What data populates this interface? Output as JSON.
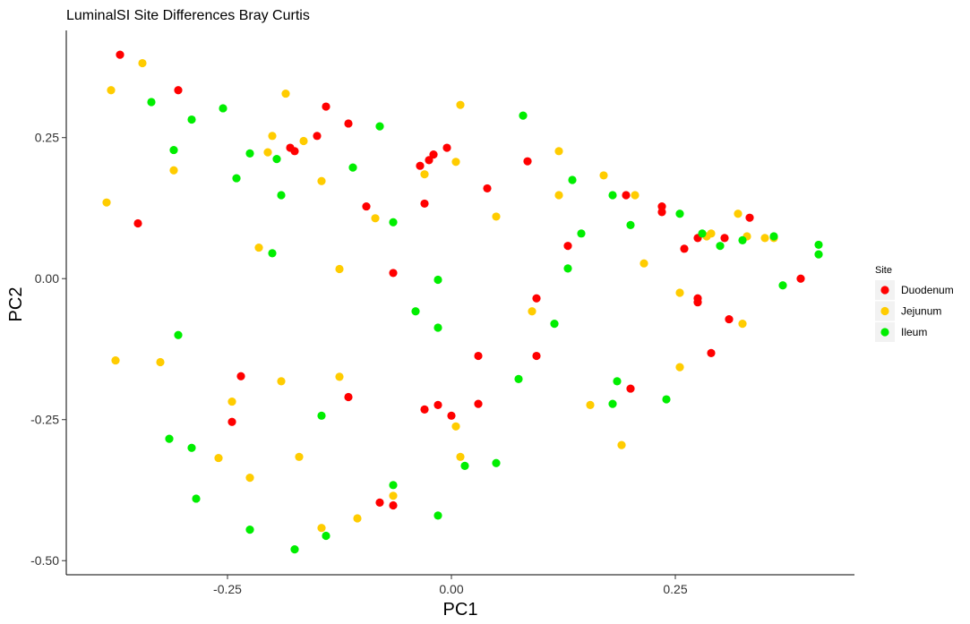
{
  "chart_data": {
    "type": "scatter",
    "title": "LuminalSI Site Differences Bray Curtis",
    "xlabel": "PC1",
    "ylabel": "PC2",
    "xlim": [
      -0.43,
      0.45
    ],
    "ylim": [
      -0.525,
      0.44
    ],
    "xticks": [
      -0.25,
      0.0,
      0.25
    ],
    "xtick_labels": [
      "-0.25",
      "0.00",
      "0.25"
    ],
    "yticks": [
      -0.5,
      -0.25,
      0.0,
      0.25
    ],
    "ytick_labels": [
      "-0.50",
      "-0.25",
      "0.00",
      "0.25"
    ],
    "grid": false,
    "legend": {
      "title": "Site",
      "position": "right"
    },
    "series": [
      {
        "name": "Duodenum",
        "color": "#ff0000",
        "points": [
          [
            -0.37,
            0.397
          ],
          [
            -0.305,
            0.334
          ],
          [
            -0.35,
            0.098
          ],
          [
            -0.14,
            0.305
          ],
          [
            -0.115,
            0.275
          ],
          [
            -0.15,
            0.253
          ],
          [
            -0.18,
            0.232
          ],
          [
            -0.175,
            0.226
          ],
          [
            -0.095,
            0.128
          ],
          [
            -0.035,
            0.2
          ],
          [
            -0.025,
            0.21
          ],
          [
            -0.02,
            0.22
          ],
          [
            -0.005,
            0.232
          ],
          [
            -0.03,
            0.133
          ],
          [
            0.04,
            0.16
          ],
          [
            0.085,
            0.208
          ],
          [
            0.13,
            0.058
          ],
          [
            0.195,
            0.148
          ],
          [
            0.235,
            0.128
          ],
          [
            0.235,
            0.118
          ],
          [
            0.26,
            0.053
          ],
          [
            0.275,
            0.072
          ],
          [
            0.305,
            0.072
          ],
          [
            0.333,
            0.108
          ],
          [
            0.39,
            0.0
          ],
          [
            -0.065,
            0.01
          ],
          [
            0.095,
            -0.035
          ],
          [
            0.275,
            -0.035
          ],
          [
            0.275,
            -0.042
          ],
          [
            0.31,
            -0.072
          ],
          [
            -0.235,
            -0.173
          ],
          [
            -0.245,
            -0.254
          ],
          [
            -0.115,
            -0.21
          ],
          [
            -0.03,
            -0.232
          ],
          [
            -0.015,
            -0.224
          ],
          [
            0.0,
            -0.243
          ],
          [
            0.03,
            -0.137
          ],
          [
            0.03,
            -0.222
          ],
          [
            0.095,
            -0.137
          ],
          [
            0.2,
            -0.195
          ],
          [
            0.29,
            -0.132
          ],
          [
            -0.08,
            -0.397
          ],
          [
            -0.065,
            -0.402
          ]
        ]
      },
      {
        "name": "Jejunum",
        "color": "#ffcc00",
        "points": [
          [
            -0.38,
            0.334
          ],
          [
            -0.345,
            0.382
          ],
          [
            -0.31,
            0.192
          ],
          [
            -0.385,
            0.135
          ],
          [
            -0.185,
            0.328
          ],
          [
            -0.2,
            0.253
          ],
          [
            -0.205,
            0.224
          ],
          [
            -0.165,
            0.244
          ],
          [
            -0.145,
            0.173
          ],
          [
            -0.085,
            0.107
          ],
          [
            -0.215,
            0.055
          ],
          [
            -0.125,
            0.017
          ],
          [
            -0.03,
            0.185
          ],
          [
            0.005,
            0.207
          ],
          [
            0.01,
            0.308
          ],
          [
            0.05,
            0.11
          ],
          [
            0.12,
            0.226
          ],
          [
            0.12,
            0.148
          ],
          [
            0.17,
            0.183
          ],
          [
            0.205,
            0.148
          ],
          [
            0.215,
            0.027
          ],
          [
            0.255,
            -0.025
          ],
          [
            0.285,
            0.075
          ],
          [
            0.29,
            0.08
          ],
          [
            0.32,
            0.115
          ],
          [
            0.33,
            0.075
          ],
          [
            0.35,
            0.072
          ],
          [
            0.36,
            0.072
          ],
          [
            0.325,
            -0.08
          ],
          [
            0.09,
            -0.058
          ],
          [
            -0.375,
            -0.145
          ],
          [
            -0.325,
            -0.148
          ],
          [
            -0.245,
            -0.218
          ],
          [
            -0.19,
            -0.182
          ],
          [
            -0.125,
            -0.174
          ],
          [
            0.155,
            -0.224
          ],
          [
            0.255,
            -0.157
          ],
          [
            -0.26,
            -0.318
          ],
          [
            -0.225,
            -0.353
          ],
          [
            -0.17,
            -0.316
          ],
          [
            -0.145,
            -0.442
          ],
          [
            -0.105,
            -0.425
          ],
          [
            -0.065,
            -0.385
          ],
          [
            0.005,
            -0.262
          ],
          [
            0.01,
            -0.316
          ],
          [
            0.19,
            -0.295
          ]
        ]
      },
      {
        "name": "Ileum",
        "color": "#00ee00",
        "points": [
          [
            -0.335,
            0.313
          ],
          [
            -0.29,
            0.282
          ],
          [
            -0.255,
            0.302
          ],
          [
            -0.31,
            0.228
          ],
          [
            -0.225,
            0.222
          ],
          [
            -0.24,
            0.178
          ],
          [
            -0.195,
            0.212
          ],
          [
            -0.19,
            0.148
          ],
          [
            -0.2,
            0.045
          ],
          [
            -0.11,
            0.197
          ],
          [
            -0.08,
            0.27
          ],
          [
            -0.065,
            0.1
          ],
          [
            0.08,
            0.289
          ],
          [
            0.135,
            0.175
          ],
          [
            0.145,
            0.08
          ],
          [
            0.18,
            0.148
          ],
          [
            0.2,
            0.095
          ],
          [
            0.255,
            0.115
          ],
          [
            0.28,
            0.08
          ],
          [
            0.3,
            0.058
          ],
          [
            0.325,
            0.068
          ],
          [
            0.36,
            0.075
          ],
          [
            0.41,
            0.06
          ],
          [
            0.41,
            0.043
          ],
          [
            0.37,
            -0.012
          ],
          [
            0.13,
            0.018
          ],
          [
            -0.015,
            -0.002
          ],
          [
            -0.04,
            -0.058
          ],
          [
            -0.015,
            -0.087
          ],
          [
            0.115,
            -0.08
          ],
          [
            -0.305,
            -0.1
          ],
          [
            -0.145,
            -0.243
          ],
          [
            -0.315,
            -0.284
          ],
          [
            -0.29,
            -0.3
          ],
          [
            -0.285,
            -0.39
          ],
          [
            -0.225,
            -0.445
          ],
          [
            -0.175,
            -0.48
          ],
          [
            -0.14,
            -0.456
          ],
          [
            -0.065,
            -0.366
          ],
          [
            -0.015,
            -0.42
          ],
          [
            0.015,
            -0.332
          ],
          [
            0.05,
            -0.327
          ],
          [
            0.075,
            -0.178
          ],
          [
            0.18,
            -0.222
          ],
          [
            0.185,
            -0.182
          ],
          [
            0.24,
            -0.214
          ]
        ]
      }
    ]
  }
}
